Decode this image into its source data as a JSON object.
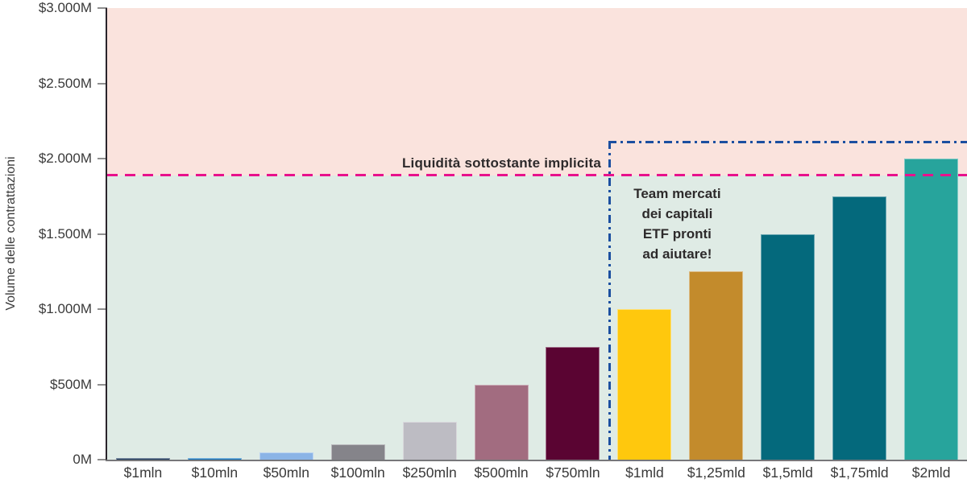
{
  "chart_data": {
    "type": "bar",
    "title": "",
    "ylabel": "Volume delle contrattazioni",
    "xlabel": "",
    "ylim": [
      0,
      3000
    ],
    "grid": false,
    "legend": false,
    "yticks": [
      {
        "value": 0,
        "label": "0M"
      },
      {
        "value": 500,
        "label": "$500M"
      },
      {
        "value": 1000,
        "label": "$1.000M"
      },
      {
        "value": 1500,
        "label": "$1.500M"
      },
      {
        "value": 2000,
        "label": "$2.000M"
      },
      {
        "value": 2500,
        "label": "$2.500M"
      },
      {
        "value": 3000,
        "label": "$3.000M"
      }
    ],
    "bars": [
      {
        "category": "$1mln",
        "value": 1,
        "color": "#1d3a5e"
      },
      {
        "category": "$10mln",
        "value": 10,
        "color": "#1a79c0"
      },
      {
        "category": "$50mln",
        "value": 50,
        "color": "#8bb4e6"
      },
      {
        "category": "$100mln",
        "value": 100,
        "color": "#85848a"
      },
      {
        "category": "$250mln",
        "value": 250,
        "color": "#bdbcc3"
      },
      {
        "category": "$500mln",
        "value": 500,
        "color": "#a26c80"
      },
      {
        "category": "$750mln",
        "value": 750,
        "color": "#5a0432"
      },
      {
        "category": "$1mld",
        "value": 1000,
        "color": "#ffc80d"
      },
      {
        "category": "$1,25mld",
        "value": 1250,
        "color": "#c38b2c"
      },
      {
        "category": "$1,5mld",
        "value": 1500,
        "color": "#04697c"
      },
      {
        "category": "$1,75mld",
        "value": 1750,
        "color": "#04697c"
      },
      {
        "category": "$2mld",
        "value": 2000,
        "color": "#27a49c"
      }
    ],
    "annotations": {
      "threshold": {
        "value": 1890,
        "label": "Liquidità sottostante implicita",
        "color": "#e8118c",
        "style": "dashed"
      },
      "callout": {
        "top_value": 2120,
        "start_category_index": 7,
        "lines": [
          "Team mercati",
          "dei capitali",
          "ETF pronti",
          "ad aiutare!"
        ],
        "color": "#1b4fa0",
        "style": "dash-dot"
      }
    },
    "background": {
      "below_threshold": "#dfebe5",
      "above_threshold": "#fae3dd"
    },
    "axis": {
      "spine_color": "#29242b",
      "baseline_color": "#77777a",
      "tick_color": "#8f8f8f",
      "label_color": "#3a3a3a",
      "annotation_text_color": "#2d2a2b"
    }
  }
}
